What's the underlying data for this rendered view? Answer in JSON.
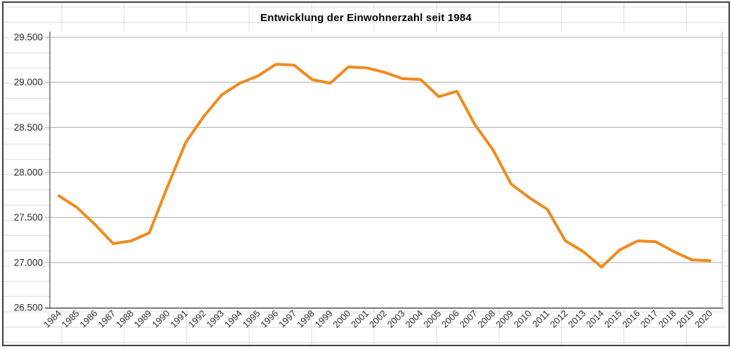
{
  "chart": {
    "title": "Entwicklung der Einwohnerzahl seit 1984"
  },
  "chart_data": {
    "type": "line",
    "title": "Entwicklung der Einwohnerzahl seit 1984",
    "xlabel": "",
    "ylabel": "",
    "legend": "none",
    "grid": true,
    "categories": [
      "1984",
      "1985",
      "1986",
      "1987",
      "1988",
      "1989",
      "1990",
      "1991",
      "1992",
      "1993",
      "1994",
      "1995",
      "1996",
      "1997",
      "1998",
      "1999",
      "2000",
      "2001",
      "2002",
      "2003",
      "2004",
      "2005",
      "2006",
      "2007",
      "2008",
      "2009",
      "2010",
      "2011",
      "2012",
      "2013",
      "2014",
      "2015",
      "2016",
      "2017",
      "2018",
      "2019",
      "2020"
    ],
    "values": [
      27740,
      27610,
      27420,
      27210,
      27240,
      27330,
      27840,
      28330,
      28620,
      28860,
      28990,
      29070,
      29200,
      29190,
      29030,
      28990,
      29170,
      29160,
      29110,
      29040,
      29030,
      28840,
      28900,
      28530,
      28250,
      27870,
      27720,
      27590,
      27240,
      27120,
      26950,
      27140,
      27240,
      27230,
      27120,
      27030,
      27020
    ],
    "ylim": [
      26500,
      29500
    ],
    "ytick_interval": 500,
    "ytick_values": [
      29500,
      29000,
      28500,
      28000,
      27500,
      27000,
      26500
    ],
    "ytick_labels": [
      "29.500",
      "29.000",
      "28.500",
      "28.000",
      "27.500",
      "27.000",
      "26.500"
    ],
    "line_color": "#F08A1D",
    "gridline_color": "#a9a9a9",
    "axis_color": "#707070",
    "label_color": "#2b2b2b"
  }
}
